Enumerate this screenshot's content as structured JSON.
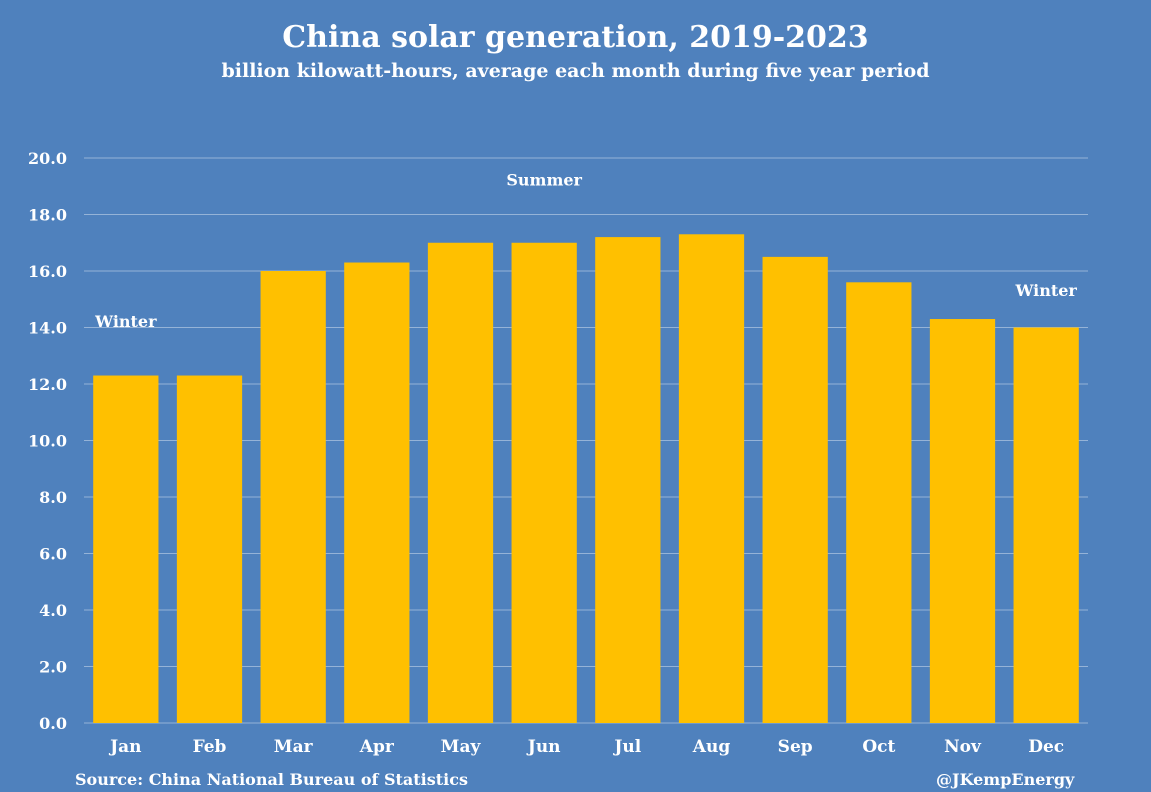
{
  "header": {
    "title": "China solar generation, 2019-2023",
    "subtitle": "billion kilowatt-hours, average each month during five year period"
  },
  "footer": {
    "source": "Source: China National Bureau of Statistics",
    "credit": "@JKempEnergy"
  },
  "colors": {
    "background": "#4f81bd",
    "bar": "#ffc000",
    "gridline": "#95b3d7",
    "text": "#ffffff"
  },
  "chart_data": {
    "type": "bar",
    "categories": [
      "Jan",
      "Feb",
      "Mar",
      "Apr",
      "May",
      "Jun",
      "Jul",
      "Aug",
      "Sep",
      "Oct",
      "Nov",
      "Dec"
    ],
    "values": [
      12.3,
      12.3,
      16.0,
      16.3,
      17.0,
      17.0,
      17.2,
      17.3,
      16.5,
      15.6,
      14.3,
      14.0
    ],
    "ylim": [
      0,
      20
    ],
    "yticks": [
      "0.0",
      "2.0",
      "4.0",
      "6.0",
      "8.0",
      "10.0",
      "12.0",
      "14.0",
      "16.0",
      "18.0",
      "20.0"
    ],
    "grid": true,
    "annotations": [
      {
        "text": "Winter",
        "category": "Jan",
        "value": 14.2
      },
      {
        "text": "Summer",
        "category": "Jun",
        "value": 19.2
      },
      {
        "text": "Winter",
        "category": "Dec",
        "value": 15.3
      }
    ]
  }
}
